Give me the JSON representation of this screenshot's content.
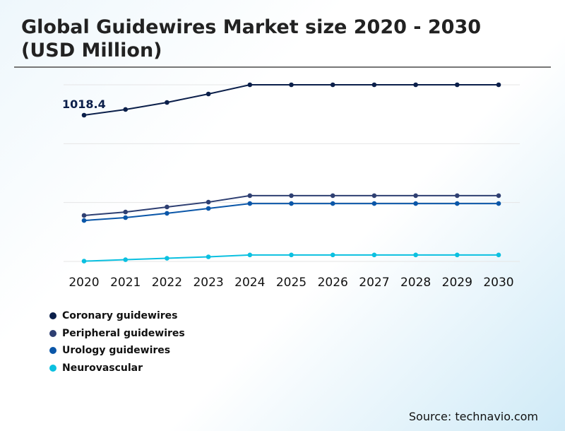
{
  "title": "Global Guidewires Market size 2020 - 2030 (USD Million)",
  "source": "Source: technavio.com",
  "chart_data": {
    "type": "line",
    "title": "Global Guidewires Market size 2020 - 2030 (USD Million)",
    "xlabel": "",
    "ylabel": "USD Million",
    "x": [
      "2020",
      "2021",
      "2022",
      "2023",
      "2024",
      "2025",
      "2026",
      "2027",
      "2028",
      "2029",
      "2030"
    ],
    "ylim": [
      0,
      1230
    ],
    "gridlines": [
      0,
      410,
      820,
      1230
    ],
    "series": [
      {
        "name": "Coronary guidewires",
        "color": "#0b1f4a",
        "values": [
          1018.4,
          1058,
          1107,
          1166,
          1230,
          1230,
          1230,
          1230,
          1230,
          1230,
          1230
        ]
      },
      {
        "name": "Peripheral guidewires",
        "color": "#2e3f72",
        "values": [
          320,
          344,
          379,
          413,
          458,
          458,
          458,
          458,
          458,
          458,
          458
        ]
      },
      {
        "name": "Urology guidewires",
        "color": "#0a56a8",
        "values": [
          285,
          305,
          335,
          369,
          403,
          403,
          403,
          403,
          403,
          403,
          403
        ]
      },
      {
        "name": "Neurovascular",
        "color": "#0bc0e0",
        "values": [
          2,
          12,
          22,
          32,
          45,
          45,
          45,
          45,
          45,
          45,
          45
        ]
      }
    ],
    "annotations": [
      {
        "series": 0,
        "index": 0,
        "text": "1018.4"
      }
    ],
    "legend_position": "bottom-left"
  }
}
